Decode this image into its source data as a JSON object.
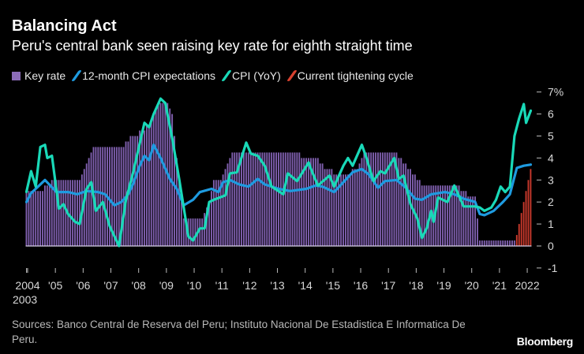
{
  "chart_data": {
    "type": "bar+line",
    "title": "Balancing Act",
    "subtitle": "Peru's central bank seen raising key rate for eighth straight time",
    "ylim": [
      -1,
      7
    ],
    "y_ticks": [
      "7%",
      "6",
      "5",
      "4",
      "3",
      "2",
      "1",
      "0",
      "-1"
    ],
    "y_tick_values": [
      7,
      6,
      5,
      4,
      3,
      2,
      1,
      0,
      -1
    ],
    "x_ticks": [
      {
        "label": "2003",
        "year": 2003.96
      },
      {
        "label": "2004",
        "year": 2004
      },
      {
        "label": "'05",
        "year": 2005
      },
      {
        "label": "'06",
        "year": 2006
      },
      {
        "label": "'07",
        "year": 2007
      },
      {
        "label": "'08",
        "year": 2008
      },
      {
        "label": "'09",
        "year": 2009
      },
      {
        "label": "'10",
        "year": 2010
      },
      {
        "label": "'11",
        "year": 2011
      },
      {
        "label": "'12",
        "year": 2012
      },
      {
        "label": "'13",
        "year": 2013
      },
      {
        "label": "'14",
        "year": 2014
      },
      {
        "label": "'15",
        "year": 2015
      },
      {
        "label": "'16",
        "year": 2016
      },
      {
        "label": "'17",
        "year": 2017
      },
      {
        "label": "'18",
        "year": 2018
      },
      {
        "label": "'19",
        "year": 2019
      },
      {
        "label": "'20",
        "year": 2020
      },
      {
        "label": "'21",
        "year": 2021
      },
      {
        "label": "2022",
        "year": 2022
      }
    ],
    "grid": false,
    "legend_placement": "top",
    "legend": [
      {
        "label": "Key rate",
        "color": "#8b6cb8",
        "kind": "box"
      },
      {
        "label": "12-month CPI expectations",
        "color": "#1e9be0",
        "kind": "line"
      },
      {
        "label": "CPI (YoY)",
        "color": "#19d9b8",
        "kind": "line"
      },
      {
        "label": "Current tightening cycle",
        "color": "#d9412f",
        "kind": "line"
      }
    ],
    "key_rate_range": [
      "2003-12",
      "2022-02"
    ],
    "key_rate_steps": [
      [
        "2003-12",
        2.5
      ],
      [
        "2004-08",
        2.75
      ],
      [
        "2004-11",
        3.0
      ],
      [
        "2005-12",
        3.25
      ],
      [
        "2006-01",
        3.5
      ],
      [
        "2006-02",
        3.75
      ],
      [
        "2006-03",
        4.0
      ],
      [
        "2006-04",
        4.25
      ],
      [
        "2006-05",
        4.5
      ],
      [
        "2007-07",
        4.75
      ],
      [
        "2007-09",
        5.0
      ],
      [
        "2008-01",
        5.25
      ],
      [
        "2008-04",
        5.5
      ],
      [
        "2008-06",
        5.75
      ],
      [
        "2008-07",
        6.0
      ],
      [
        "2008-08",
        6.25
      ],
      [
        "2008-09",
        6.5
      ],
      [
        "2009-02",
        6.25
      ],
      [
        "2009-03",
        6.0
      ],
      [
        "2009-04",
        5.0
      ],
      [
        "2009-05",
        4.0
      ],
      [
        "2009-06",
        3.0
      ],
      [
        "2009-07",
        2.0
      ],
      [
        "2009-08",
        1.25
      ],
      [
        "2010-05",
        1.5
      ],
      [
        "2010-06",
        1.75
      ],
      [
        "2010-07",
        2.0
      ],
      [
        "2010-08",
        2.5
      ],
      [
        "2010-09",
        3.0
      ],
      [
        "2011-01",
        3.25
      ],
      [
        "2011-02",
        3.5
      ],
      [
        "2011-03",
        3.75
      ],
      [
        "2011-04",
        4.0
      ],
      [
        "2011-05",
        4.25
      ],
      [
        "2013-11",
        4.0
      ],
      [
        "2014-07",
        3.75
      ],
      [
        "2014-09",
        3.5
      ],
      [
        "2015-01",
        3.25
      ],
      [
        "2015-09",
        3.5
      ],
      [
        "2015-12",
        3.75
      ],
      [
        "2016-01",
        4.0
      ],
      [
        "2016-02",
        4.25
      ],
      [
        "2017-05",
        4.0
      ],
      [
        "2017-07",
        3.75
      ],
      [
        "2017-09",
        3.5
      ],
      [
        "2017-11",
        3.25
      ],
      [
        "2018-01",
        3.0
      ],
      [
        "2018-03",
        2.75
      ],
      [
        "2019-08",
        2.5
      ],
      [
        "2019-11",
        2.25
      ],
      [
        "2020-03",
        1.25
      ],
      [
        "2020-04",
        0.25
      ],
      [
        "2021-08",
        0.5
      ],
      [
        "2021-09",
        1.0
      ],
      [
        "2021-10",
        1.5
      ],
      [
        "2021-11",
        2.0
      ],
      [
        "2021-12",
        2.5
      ],
      [
        "2022-01",
        3.0
      ],
      [
        "2022-02",
        3.5
      ]
    ],
    "current_tightening_cycle_start": "2021-08",
    "series": [
      {
        "name": "12-month CPI expectations",
        "color": "#1e9be0",
        "points": [
          [
            "2003-12",
            2.0
          ],
          [
            "2004-02",
            2.4
          ],
          [
            "2004-05",
            2.7
          ],
          [
            "2004-08",
            3.0
          ],
          [
            "2005-01",
            2.45
          ],
          [
            "2005-06",
            2.45
          ],
          [
            "2005-10",
            2.35
          ],
          [
            "2006-02",
            2.5
          ],
          [
            "2006-07",
            2.45
          ],
          [
            "2006-10",
            2.35
          ],
          [
            "2007-02",
            1.85
          ],
          [
            "2007-05",
            2.0
          ],
          [
            "2007-08",
            2.35
          ],
          [
            "2007-10",
            2.8
          ],
          [
            "2008-01",
            3.65
          ],
          [
            "2008-03",
            4.1
          ],
          [
            "2008-05",
            3.9
          ],
          [
            "2008-07",
            4.6
          ],
          [
            "2008-10",
            4.0
          ],
          [
            "2009-02",
            3.05
          ],
          [
            "2009-05",
            2.6
          ],
          [
            "2009-08",
            1.85
          ],
          [
            "2009-12",
            2.1
          ],
          [
            "2010-03",
            2.45
          ],
          [
            "2010-08",
            2.6
          ],
          [
            "2010-11",
            2.45
          ],
          [
            "2011-01",
            2.9
          ],
          [
            "2011-04",
            3.0
          ],
          [
            "2011-08",
            2.8
          ],
          [
            "2011-12",
            2.7
          ],
          [
            "2012-04",
            3.05
          ],
          [
            "2012-07",
            2.8
          ],
          [
            "2013-01",
            2.6
          ],
          [
            "2013-06",
            2.5
          ],
          [
            "2014-01",
            2.6
          ],
          [
            "2014-05",
            2.75
          ],
          [
            "2014-08",
            2.7
          ],
          [
            "2015-01",
            2.45
          ],
          [
            "2015-05",
            2.9
          ],
          [
            "2015-09",
            3.35
          ],
          [
            "2016-01",
            3.5
          ],
          [
            "2016-04",
            3.25
          ],
          [
            "2016-08",
            2.65
          ],
          [
            "2016-11",
            2.95
          ],
          [
            "2017-04",
            3.0
          ],
          [
            "2017-08",
            2.65
          ],
          [
            "2017-12",
            2.15
          ],
          [
            "2018-03",
            2.1
          ],
          [
            "2018-07",
            2.35
          ],
          [
            "2019-01",
            2.45
          ],
          [
            "2019-05",
            2.35
          ],
          [
            "2019-09",
            2.15
          ],
          [
            "2020-02",
            2.0
          ],
          [
            "2020-04",
            1.45
          ],
          [
            "2020-06",
            1.4
          ],
          [
            "2020-10",
            1.6
          ],
          [
            "2021-02",
            2.0
          ],
          [
            "2021-05",
            2.35
          ],
          [
            "2021-08",
            3.55
          ],
          [
            "2021-11",
            3.65
          ],
          [
            "2022-02",
            3.7
          ]
        ]
      },
      {
        "name": "CPI (YoY)",
        "color": "#19d9b8",
        "points": [
          [
            "2003-12",
            2.46
          ],
          [
            "2004-02",
            3.4
          ],
          [
            "2004-04",
            2.7
          ],
          [
            "2004-06",
            4.5
          ],
          [
            "2004-08",
            4.6
          ],
          [
            "2004-09",
            4.0
          ],
          [
            "2004-11",
            4.1
          ],
          [
            "2005-02",
            1.7
          ],
          [
            "2005-04",
            1.9
          ],
          [
            "2005-06",
            1.45
          ],
          [
            "2005-09",
            1.1
          ],
          [
            "2005-11",
            1.0
          ],
          [
            "2006-02",
            2.6
          ],
          [
            "2006-04",
            2.9
          ],
          [
            "2006-06",
            1.6
          ],
          [
            "2006-09",
            2.0
          ],
          [
            "2006-12",
            0.9
          ],
          [
            "2007-04",
            0.0
          ],
          [
            "2007-07",
            2.1
          ],
          [
            "2007-10",
            3.3
          ],
          [
            "2008-03",
            5.6
          ],
          [
            "2008-05",
            5.4
          ],
          [
            "2008-07",
            6.0
          ],
          [
            "2008-10",
            6.7
          ],
          [
            "2008-12",
            6.5
          ],
          [
            "2009-03",
            4.9
          ],
          [
            "2009-06",
            3.05
          ],
          [
            "2009-10",
            0.43
          ],
          [
            "2009-12",
            0.25
          ],
          [
            "2010-03",
            0.8
          ],
          [
            "2010-05",
            0.8
          ],
          [
            "2010-07",
            2.0
          ],
          [
            "2010-09",
            2.1
          ],
          [
            "2011-02",
            2.3
          ],
          [
            "2011-04",
            3.3
          ],
          [
            "2011-07",
            3.35
          ],
          [
            "2011-11",
            4.7
          ],
          [
            "2012-01",
            4.2
          ],
          [
            "2012-04",
            4.1
          ],
          [
            "2012-07",
            3.65
          ],
          [
            "2012-10",
            2.7
          ],
          [
            "2013-03",
            2.35
          ],
          [
            "2013-05",
            3.3
          ],
          [
            "2013-09",
            2.95
          ],
          [
            "2014-02",
            3.8
          ],
          [
            "2014-03",
            3.5
          ],
          [
            "2014-06",
            2.75
          ],
          [
            "2014-11",
            3.2
          ],
          [
            "2015-01",
            2.7
          ],
          [
            "2015-05",
            3.65
          ],
          [
            "2015-07",
            4.0
          ],
          [
            "2015-09",
            3.65
          ],
          [
            "2016-01",
            4.6
          ],
          [
            "2016-03",
            4.0
          ],
          [
            "2016-06",
            2.95
          ],
          [
            "2016-09",
            3.4
          ],
          [
            "2016-11",
            3.3
          ],
          [
            "2017-03",
            4.0
          ],
          [
            "2017-05",
            3.05
          ],
          [
            "2017-07",
            3.2
          ],
          [
            "2017-10",
            1.9
          ],
          [
            "2018-01",
            1.25
          ],
          [
            "2018-03",
            0.37
          ],
          [
            "2018-05",
            0.8
          ],
          [
            "2018-07",
            1.6
          ],
          [
            "2018-08",
            1.1
          ],
          [
            "2018-10",
            2.2
          ],
          [
            "2019-02",
            2.0
          ],
          [
            "2019-05",
            2.75
          ],
          [
            "2019-09",
            1.8
          ],
          [
            "2020-02",
            1.8
          ],
          [
            "2020-04",
            1.75
          ],
          [
            "2020-06",
            1.6
          ],
          [
            "2020-09",
            1.75
          ],
          [
            "2020-11",
            2.1
          ],
          [
            "2021-01",
            2.7
          ],
          [
            "2021-03",
            2.45
          ],
          [
            "2021-05",
            2.7
          ],
          [
            "2021-07",
            5.0
          ],
          [
            "2021-09",
            5.8
          ],
          [
            "2021-11",
            6.45
          ],
          [
            "2021-12",
            5.6
          ],
          [
            "2022-02",
            6.15
          ]
        ]
      }
    ]
  },
  "footer": {
    "source": "Sources: Banco Central de Reserva del Peru; Instituto Nacional De Estadistica E Informatica De Peru.",
    "logo": "Bloomberg"
  }
}
